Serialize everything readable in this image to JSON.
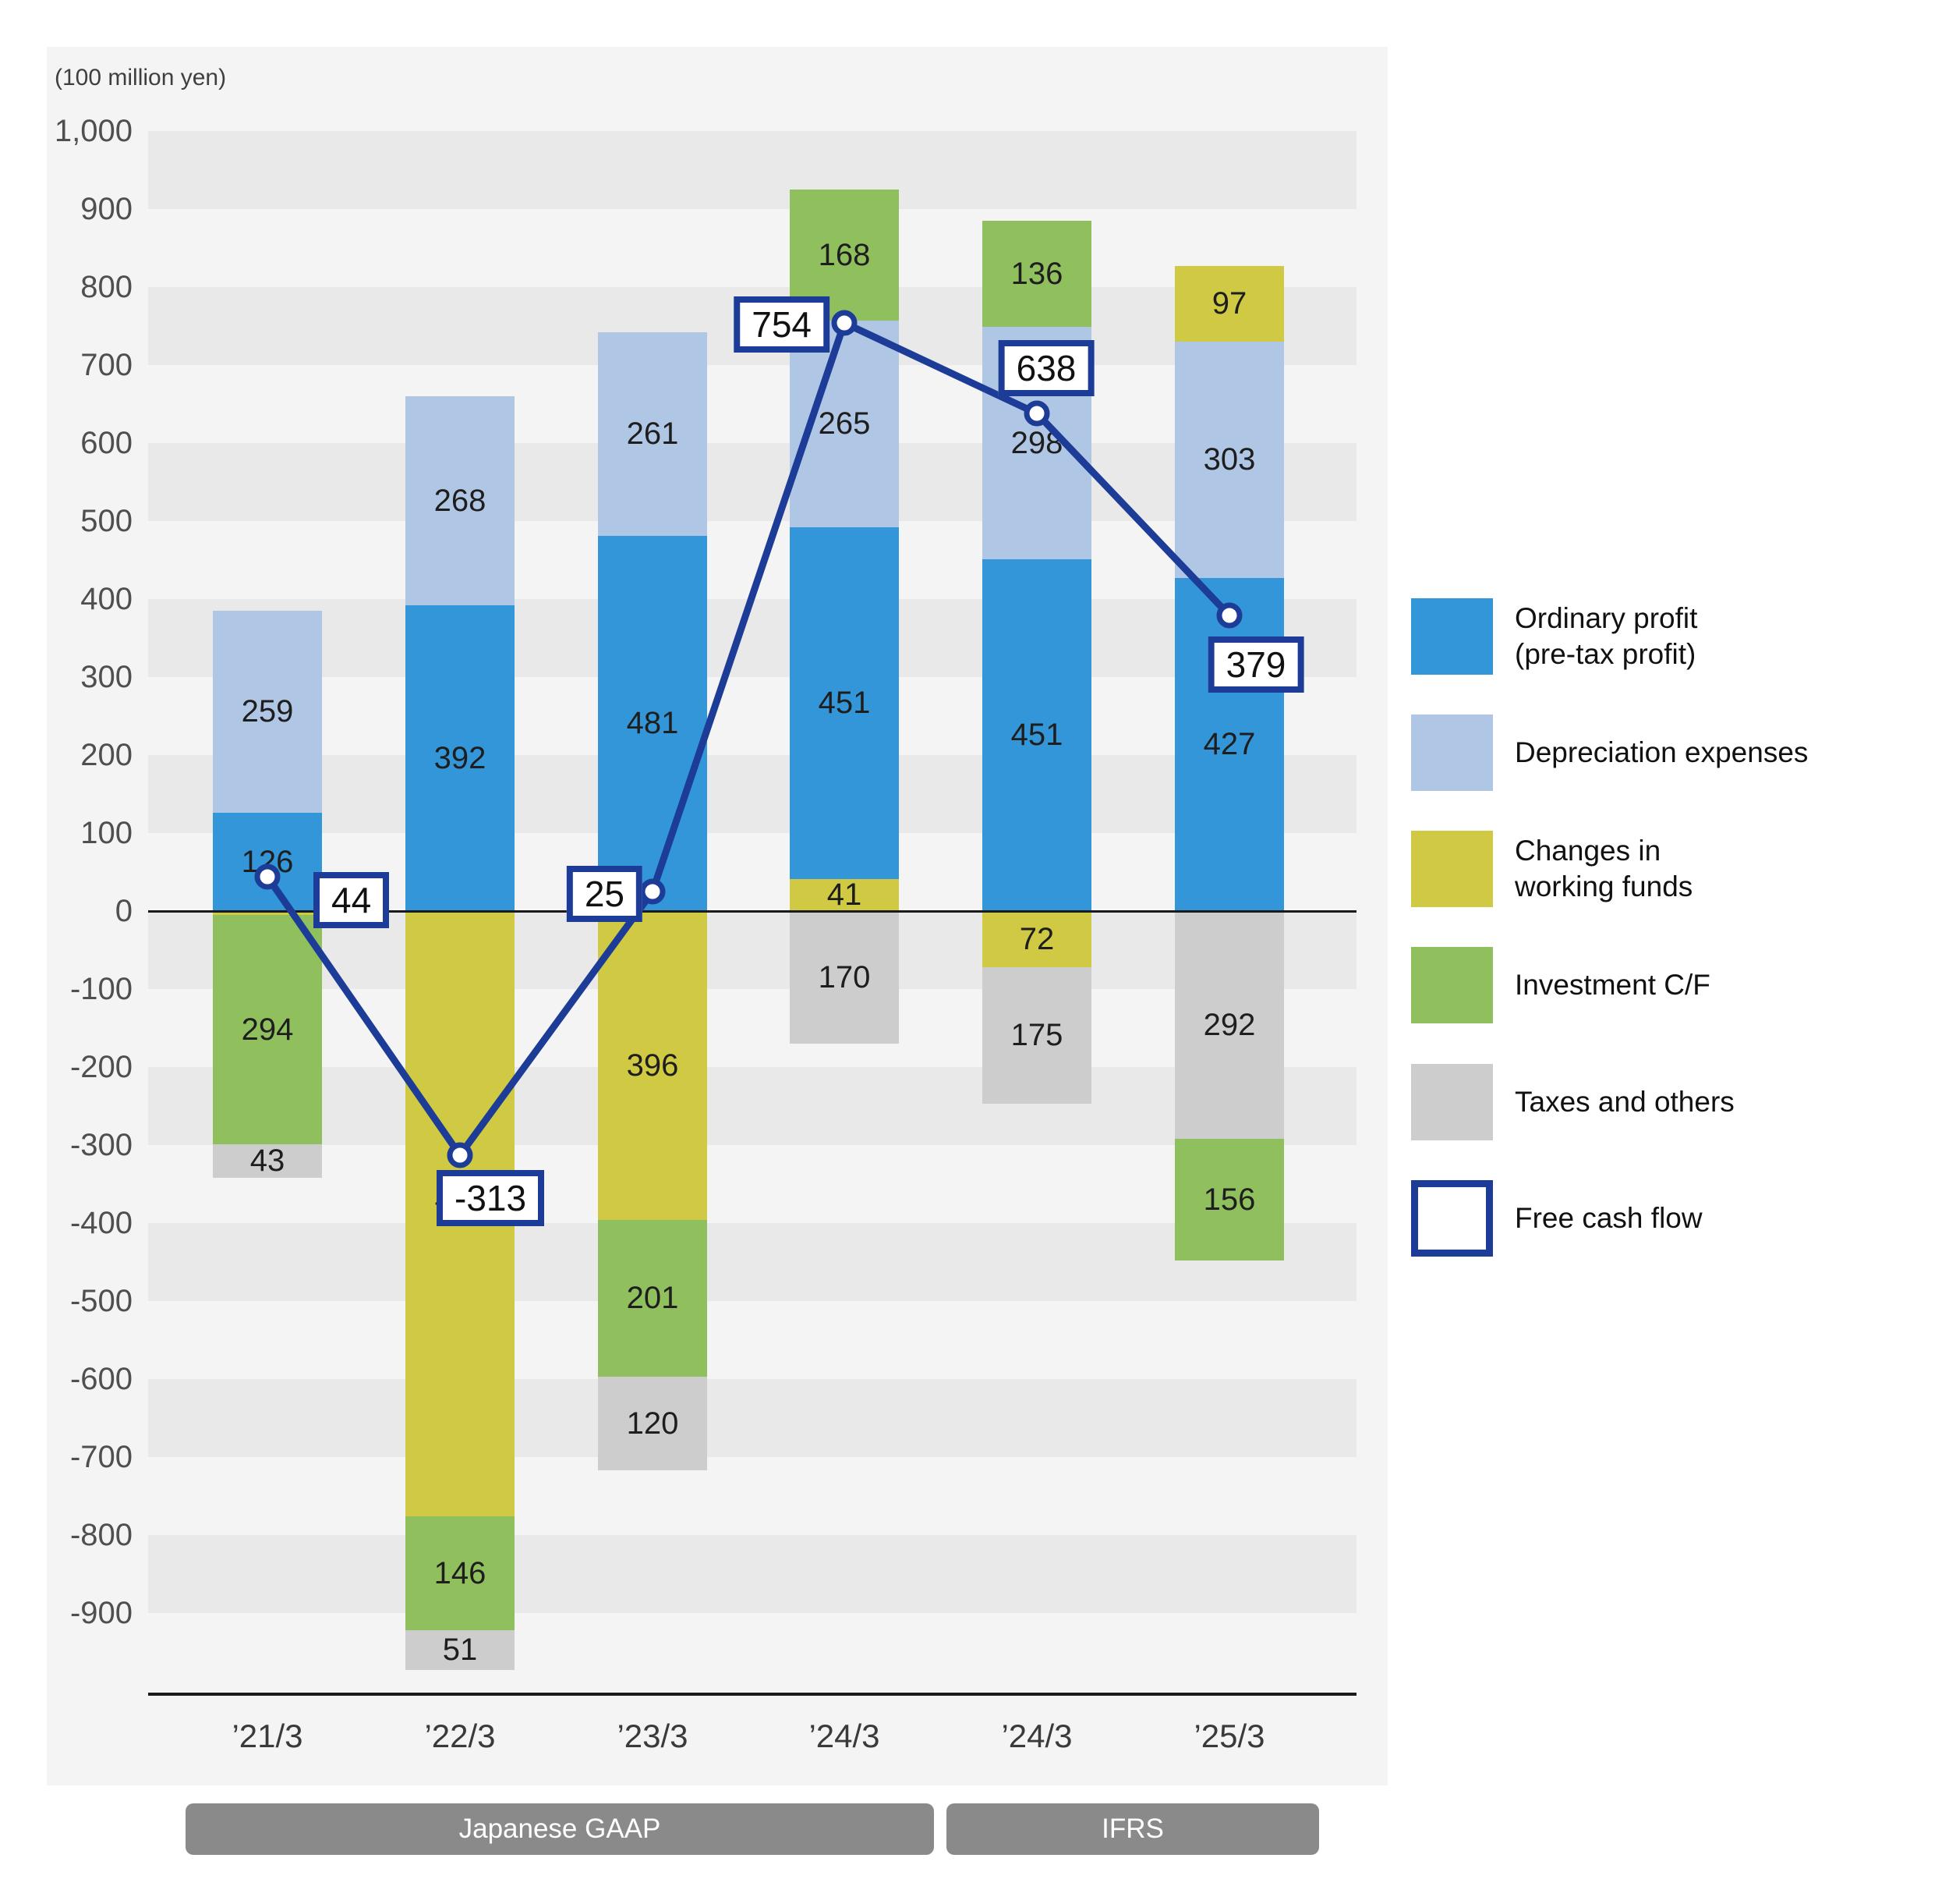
{
  "unit_label": "(100 million yen)",
  "palette": {
    "blue": "#3396d8",
    "lightblue": "#b0c6e5",
    "yellow": "#cfc943",
    "green": "#90bf5e",
    "gray": "#cdcdcd",
    "navy": "#1c3c97",
    "band": "#e9e9e9",
    "panel_bg": "#f4f4f4",
    "badge_bg": "#8a8a8a"
  },
  "y_axis": {
    "ticks": [
      "1,000",
      "900",
      "800",
      "700",
      "600",
      "500",
      "400",
      "300",
      "200",
      "100",
      "0",
      "-100",
      "-200",
      "-300",
      "-400",
      "-500",
      "-600",
      "-700",
      "-800",
      "-900"
    ]
  },
  "groups": [
    {
      "label": "Japanese GAAP"
    },
    {
      "label": "IFRS"
    }
  ],
  "legend": [
    {
      "key": "blue",
      "type": "fill",
      "label": "Ordinary profit\n(pre-tax profit)"
    },
    {
      "key": "lightblue",
      "type": "fill",
      "label": "Depreciation expenses"
    },
    {
      "key": "yellow",
      "type": "fill",
      "label": "Changes in\nworking funds"
    },
    {
      "key": "green",
      "type": "fill",
      "label": "Investment C/F"
    },
    {
      "key": "gray",
      "type": "fill",
      "label": "Taxes and others"
    },
    {
      "key": "outline",
      "type": "outline",
      "label": "Free cash flow"
    }
  ],
  "bars": [
    {
      "x_label": "’21/3",
      "positive": [
        {
          "key": "blue",
          "value": 126,
          "label": "126"
        },
        {
          "key": "lightblue",
          "value": 259,
          "label": "259"
        }
      ],
      "negative": [
        {
          "key": "yellow",
          "value": 5
        },
        {
          "key": "green",
          "value": 294,
          "label": "294"
        },
        {
          "key": "gray",
          "value": 43,
          "label": "43"
        }
      ],
      "fcf": 44,
      "fcf_label": "44"
    },
    {
      "x_label": "’22/3",
      "positive": [
        {
          "key": "blue",
          "value": 392,
          "label": "392"
        },
        {
          "key": "lightblue",
          "value": 268,
          "label": "268"
        }
      ],
      "negative": [
        {
          "key": "yellow",
          "value": 776,
          "label": "776"
        },
        {
          "key": "green",
          "value": 146,
          "label": "146"
        },
        {
          "key": "gray",
          "value": 51,
          "label": "51"
        }
      ],
      "fcf": -313,
      "fcf_label": "-313"
    },
    {
      "x_label": "’23/3",
      "positive": [
        {
          "key": "blue",
          "value": 481,
          "label": "481"
        },
        {
          "key": "lightblue",
          "value": 261,
          "label": "261"
        }
      ],
      "negative": [
        {
          "key": "yellow",
          "value": 396,
          "label": "396"
        },
        {
          "key": "green",
          "value": 201,
          "label": "201"
        },
        {
          "key": "gray",
          "value": 120,
          "label": "120"
        }
      ],
      "fcf": 25,
      "fcf_label": "25"
    },
    {
      "x_label": "’24/3",
      "positive": [
        {
          "key": "yellow",
          "value": 41,
          "label": "41"
        },
        {
          "key": "blue",
          "value": 451,
          "label": "451"
        },
        {
          "key": "lightblue",
          "value": 265,
          "label": "265"
        },
        {
          "key": "green",
          "value": 168,
          "label": "168"
        }
      ],
      "negative": [
        {
          "key": "gray",
          "value": 170,
          "label": "170"
        }
      ],
      "fcf": 754,
      "fcf_label": "754"
    },
    {
      "x_label": "’24/3",
      "positive": [
        {
          "key": "blue",
          "value": 451,
          "label": "451"
        },
        {
          "key": "lightblue",
          "value": 298,
          "label": "298"
        },
        {
          "key": "green",
          "value": 136,
          "label": "136"
        }
      ],
      "negative": [
        {
          "key": "yellow",
          "value": 72,
          "label": "72"
        },
        {
          "key": "gray",
          "value": 175,
          "label": "175"
        }
      ],
      "fcf": 638,
      "fcf_label": "638"
    },
    {
      "x_label": "’25/3",
      "positive": [
        {
          "key": "blue",
          "value": 427,
          "label": "427"
        },
        {
          "key": "lightblue",
          "value": 303,
          "label": "303"
        },
        {
          "key": "yellow",
          "value": 97,
          "label": "97"
        }
      ],
      "negative": [
        {
          "key": "gray",
          "value": 292,
          "label": "292"
        },
        {
          "key": "green",
          "value": 156,
          "label": "156"
        }
      ],
      "fcf": 379,
      "fcf_label": "379"
    }
  ],
  "chart_data": {
    "type": "bar",
    "subtype": "stacked-bar-with-line",
    "unit": "100 million yen",
    "categories": [
      "'21/3",
      "'22/3",
      "'23/3",
      "'24/3",
      "'24/3",
      "'25/3"
    ],
    "category_groups": [
      {
        "label": "Japanese GAAP",
        "span": [
          0,
          3
        ]
      },
      {
        "label": "IFRS",
        "span": [
          4,
          5
        ]
      }
    ],
    "series": [
      {
        "name": "Ordinary profit (pre-tax profit)",
        "color": "#3396d8",
        "values": [
          126,
          392,
          481,
          451,
          451,
          427
        ]
      },
      {
        "name": "Depreciation expenses",
        "color": "#b0c6e5",
        "values": [
          259,
          268,
          261,
          265,
          298,
          303
        ]
      },
      {
        "name": "Changes in working funds",
        "color": "#cfc943",
        "values": [
          -5,
          -776,
          -396,
          41,
          -72,
          97
        ]
      },
      {
        "name": "Investment C/F",
        "color": "#90bf5e",
        "values": [
          -294,
          -146,
          -201,
          168,
          136,
          -156
        ]
      },
      {
        "name": "Taxes and others",
        "color": "#cdcdcd",
        "values": [
          -43,
          -51,
          -120,
          -170,
          -175,
          -292
        ]
      }
    ],
    "line_series": {
      "name": "Free cash flow",
      "color": "#1c3c97",
      "values": [
        44,
        -313,
        25,
        754,
        638,
        379
      ]
    },
    "ylabel": "(100 million yen)",
    "ylim": [
      -1000,
      1000
    ],
    "ytick_step": 100,
    "grid": "alternating-horizontal-bands",
    "legend_position": "right"
  }
}
